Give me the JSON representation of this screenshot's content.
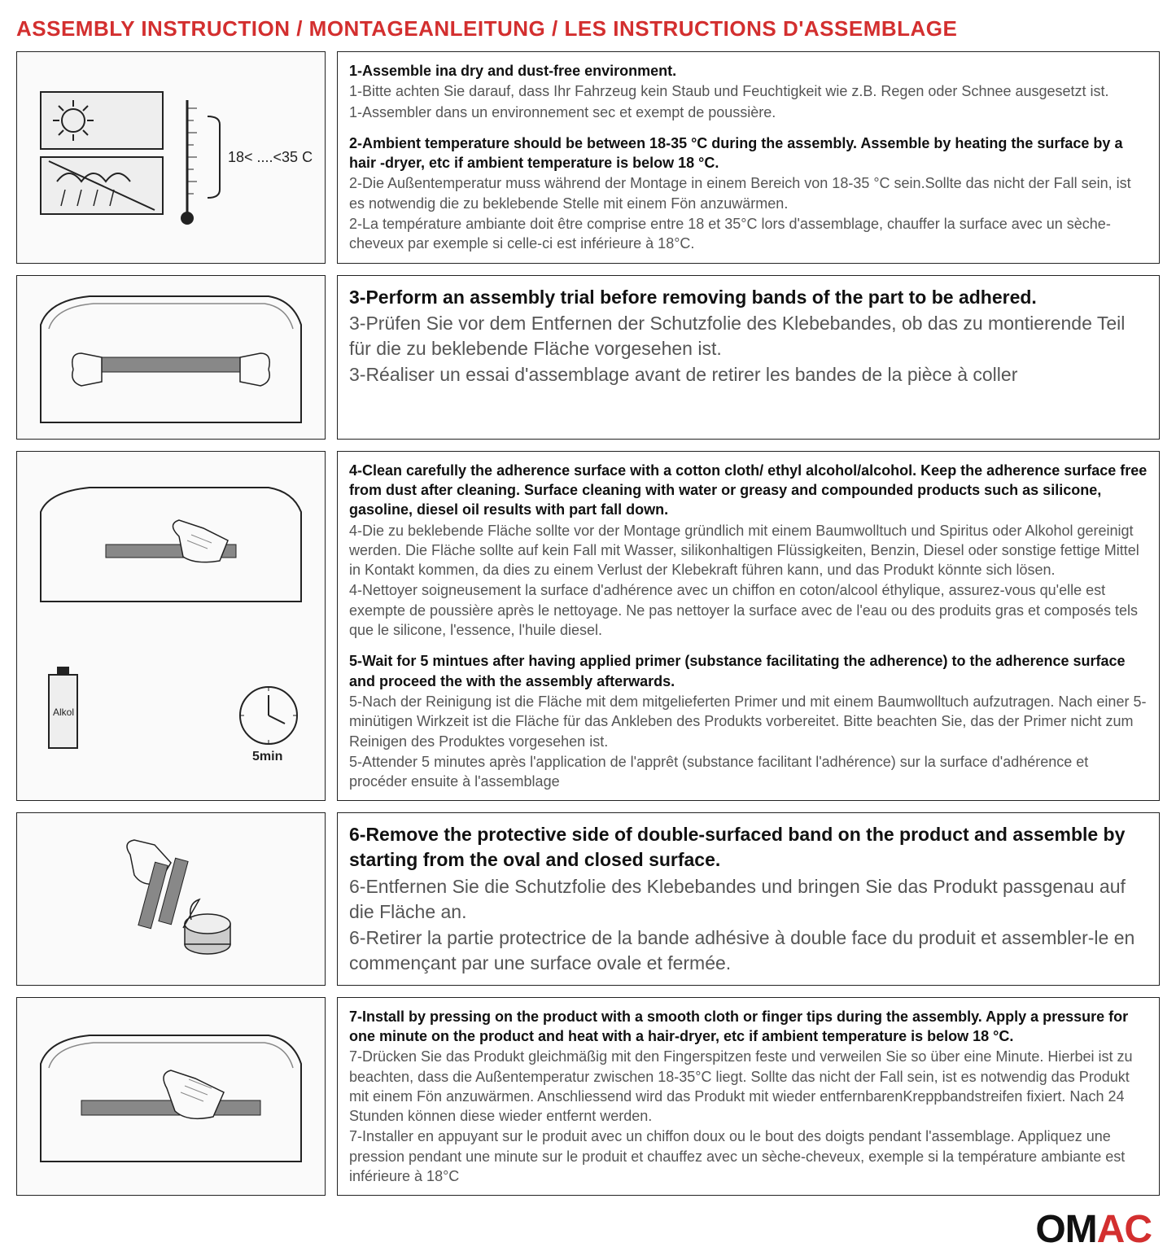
{
  "title": "ASSEMBLY INSTRUCTION / MONTAGEANLEITUNG / LES INSTRUCTIONS D'ASSEMBLAGE",
  "logo_text_black": "OM",
  "logo_text_red": "AC",
  "icon_labels": {
    "temp_range": "18< ....<35 C",
    "alcohol": "Alkol",
    "timer": "5min"
  },
  "steps": [
    {
      "icon": "temperature",
      "lines": [
        {
          "style": "bold",
          "text": "1-Assemble ina dry and dust-free environment."
        },
        {
          "style": "normal",
          "text": "1-Bitte achten Sie darauf, dass Ihr Fahrzeug kein Staub und Feuchtigkeit wie z.B. Regen oder Schnee ausgesetzt ist."
        },
        {
          "style": "normal",
          "text": "1-Assembler dans un environnement sec et exempt de poussière."
        },
        {
          "style": "spacer",
          "text": ""
        },
        {
          "style": "bold",
          "text": "2-Ambient temperature should be between 18-35 °C  during the assembly. Assemble by heating the surface by a hair -dryer, etc if ambient temperature is below 18 °C."
        },
        {
          "style": "normal",
          "text": "2-Die Außentemperatur muss während der Montage in einem Bereich von 18-35 °C  sein.Sollte das nicht der Fall sein, ist es notwendig die zu beklebende Stelle mit einem Fön anzuwärmen."
        },
        {
          "style": "normal",
          "text": "2-La température ambiante doit être comprise entre 18 et 35°C lors d'assemblage, chauffer la surface avec un sèche-cheveux par exemple si celle-ci est inférieure à 18°C."
        }
      ]
    },
    {
      "icon": "trial",
      "lines": [
        {
          "style": "bold",
          "text": "3-Perform an assembly trial before removing bands of the part to be adhered."
        },
        {
          "style": "normal",
          "text": "3-Prüfen Sie vor dem Entfernen der Schutzfolie des Klebebandes, ob das zu montierende Teil für die zu beklebende Fläche vorgesehen ist."
        },
        {
          "style": "normal",
          "text": "3-Réaliser un essai d'assemblage avant de retirer les bandes de la pièce à coller"
        }
      ],
      "large_font": true
    },
    {
      "icon": "clean",
      "lines": [
        {
          "style": "bold",
          "text": "4-Clean carefully the adherence surface with a cotton cloth/ ethyl alcohol/alcohol. Keep the adherence surface free from dust after cleaning. Surface cleaning with water or greasy and compounded products such as silicone, gasoline, diesel oil results with part fall down."
        },
        {
          "style": "normal",
          "text": "4-Die zu beklebende Fläche sollte vor der Montage gründlich mit einem Baumwolltuch und Spiritus oder Alkohol gereinigt werden. Die Fläche sollte auf kein Fall mit Wasser, silikonhaltigen Flüssigkeiten, Benzin, Diesel oder sonstige fettige Mittel in Kontakt kommen, da dies zu einem Verlust der Klebekraft führen kann, und das Produkt könnte sich lösen."
        },
        {
          "style": "normal",
          "text": "4-Nettoyer soigneusement la surface d'adhérence avec un chiffon en coton/alcool éthylique, assurez-vous qu'elle est exempte de poussière après le nettoyage. Ne pas nettoyer la surface avec de l'eau ou des produits gras et composés tels que le silicone, l'essence, l'huile diesel."
        },
        {
          "style": "spacer",
          "text": ""
        },
        {
          "style": "bold",
          "text": "5-Wait for 5 mintues after having applied primer (substance facilitating the adherence) to the adherence surface and proceed the with the assembly afterwards."
        },
        {
          "style": "normal",
          "text": "5-Nach der Reinigung ist die Fläche mit dem mitgelieferten Primer und mit einem Baumwolltuch aufzutragen. Nach einer 5-minütigen Wirkzeit ist die Fläche für das Ankleben des Produkts vorbereitet. Bitte beachten Sie, das der Primer nicht zum Reinigen des Produktes vorgesehen ist."
        },
        {
          "style": "normal",
          "text": "5-Attender 5 minutes après l'application de l'apprêt (substance facilitant l'adhérence) sur la surface d'adhérence et procéder ensuite à l'assemblage"
        }
      ]
    },
    {
      "icon": "peel",
      "lines": [
        {
          "style": "bold",
          "text": "6-Remove the protective side of double-surfaced band on the product and assemble by starting from the oval and closed surface."
        },
        {
          "style": "normal",
          "text": "6-Entfernen Sie die Schutzfolie des Klebebandes und bringen Sie das Produkt passgenau auf die Fläche an."
        },
        {
          "style": "normal",
          "text": "6-Retirer la partie protectrice de la bande adhésive à double face du produit et assembler-le en commençant par une surface ovale et fermée."
        }
      ],
      "large_font": true
    },
    {
      "icon": "press",
      "lines": [
        {
          "style": "bold",
          "text": "7-Install by pressing on the product with a smooth cloth or finger tips during the assembly. Apply a pressure for one minute on the product and heat with a hair-dryer, etc if ambient temperature is below 18 °C."
        },
        {
          "style": "normal",
          "text": "7-Drücken Sie das Produkt gleichmäßig mit den Fingerspitzen feste und verweilen Sie so über eine Minute. Hierbei ist zu beachten, dass die Außentemperatur zwischen 18-35°C liegt. Sollte das nicht der Fall sein, ist es notwendig das Produkt mit einem Fön anzuwärmen. Anschliessend wird das Produkt mit wieder entfernbarenKreppbandstreifen fixiert. Nach 24 Stunden können diese wieder entfernt werden."
        },
        {
          "style": "normal",
          "text": "7-Installer en appuyant sur le produit avec un chiffon doux ou le bout des doigts pendant l'assemblage. Appliquez une pression pendant une minute sur le produit et chauffez avec un sèche-cheveux, exemple si la température ambiante est inférieure à 18°C"
        }
      ]
    }
  ]
}
